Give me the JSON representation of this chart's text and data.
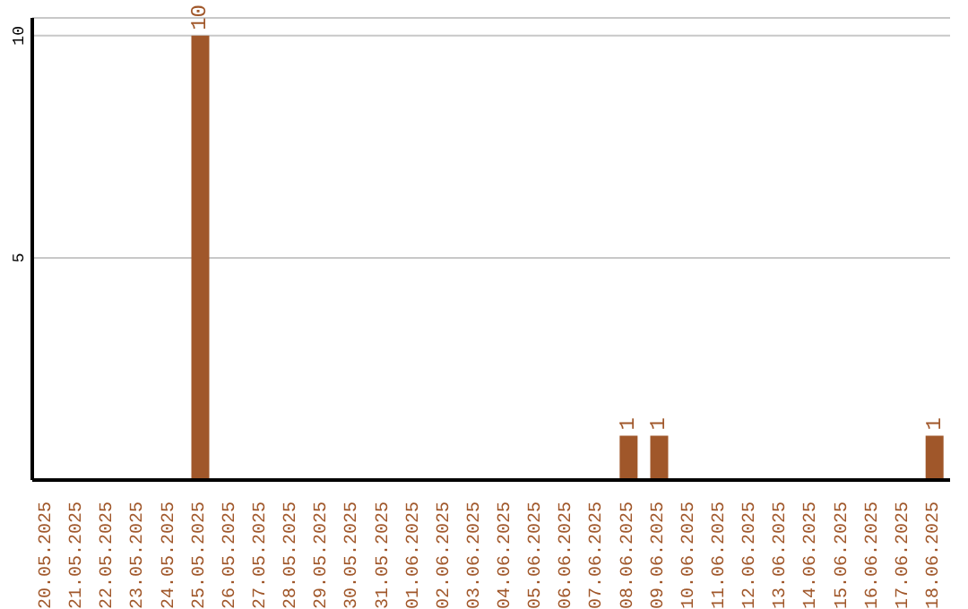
{
  "chart_data": {
    "type": "bar",
    "categories": [
      "20.05.2025",
      "21.05.2025",
      "22.05.2025",
      "23.05.2025",
      "24.05.2025",
      "25.05.2025",
      "26.05.2025",
      "27.05.2025",
      "28.05.2025",
      "29.05.2025",
      "30.05.2025",
      "31.05.2025",
      "01.06.2025",
      "02.06.2025",
      "03.06.2025",
      "04.06.2025",
      "05.06.2025",
      "06.06.2025",
      "07.06.2025",
      "08.06.2025",
      "09.06.2025",
      "10.06.2025",
      "11.06.2025",
      "12.06.2025",
      "13.06.2025",
      "14.06.2025",
      "15.06.2025",
      "16.06.2025",
      "17.06.2025",
      "18.06.2025"
    ],
    "values": [
      0,
      0,
      0,
      0,
      0,
      10,
      0,
      0,
      0,
      0,
      0,
      0,
      0,
      0,
      0,
      0,
      0,
      0,
      0,
      1,
      1,
      0,
      0,
      0,
      0,
      0,
      0,
      0,
      0,
      1
    ],
    "value_labels": [
      null,
      null,
      null,
      null,
      null,
      "10",
      null,
      null,
      null,
      null,
      null,
      null,
      null,
      null,
      null,
      null,
      null,
      null,
      null,
      "1",
      "1",
      null,
      null,
      null,
      null,
      null,
      null,
      null,
      null,
      "1"
    ],
    "color": "#a0572a",
    "ylim": [
      0,
      10.4
    ],
    "yticks": [
      5,
      10
    ],
    "grid": "y"
  }
}
